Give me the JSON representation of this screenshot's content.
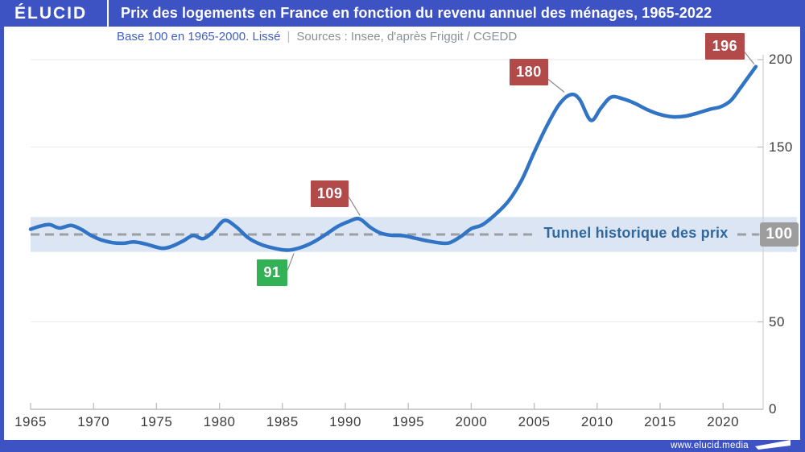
{
  "header": {
    "logo": "ÉLUCID",
    "title": "Prix des logements en France en fonction du revenu annuel des ménages, 1965-2022"
  },
  "subtitle": {
    "base": "Base 100 en 1965-2000. Lissé",
    "separator": "|",
    "sources": "Sources : Insee, d'après Friggit / CGEDD"
  },
  "footer": {
    "url": "www.elucid.media"
  },
  "colors": {
    "brand_blue": "#3e53c3",
    "line_blue": "#3174c6",
    "tunnel_band": "#dbe5f3",
    "tunnel_text": "#2f689e",
    "dashed_gray": "#9aa0a6",
    "badge_red": "#b34a4a",
    "badge_green": "#32b155",
    "badge_gray": "#9d9d9d",
    "grid_gray": "#ededed",
    "axis_gray": "#bdbdbd",
    "tick_text": "#3d3d3d",
    "connector_gray": "#8a8a8a"
  },
  "chart_data": {
    "type": "line",
    "title": "Prix des logements en France en fonction du revenu annuel des ménages, 1965-2022",
    "subtitle": "Base 100 en 1965-2000. Lissé",
    "sources": "Sources : Insee, d'après Friggit / CGEDD",
    "xlabel": "",
    "ylabel": "",
    "xlim": [
      1965,
      2023.2
    ],
    "ylim": [
      0,
      200
    ],
    "xticks": [
      1965,
      1970,
      1975,
      1980,
      1985,
      1990,
      1995,
      2000,
      2005,
      2010,
      2015,
      2020
    ],
    "yticks": [
      0,
      50,
      100,
      150,
      200
    ],
    "highlighted_ytick": 100,
    "grid_yticks": [
      50,
      150,
      200
    ],
    "baseline": {
      "value": 100,
      "style": "dashed"
    },
    "tunnel": {
      "min": 90,
      "max": 110,
      "label": "Tunnel historique des prix"
    },
    "series": [
      {
        "name": "Prix des logements rapporté au revenu annuel des ménages",
        "points": [
          [
            1965.0,
            103.0
          ],
          [
            1965.8,
            104.8
          ],
          [
            1966.5,
            105.6
          ],
          [
            1967.3,
            103.7
          ],
          [
            1968.2,
            105.2
          ],
          [
            1969.0,
            103.0
          ],
          [
            1969.8,
            99.5
          ],
          [
            1970.6,
            96.9
          ],
          [
            1971.5,
            95.3
          ],
          [
            1972.4,
            95.0
          ],
          [
            1973.2,
            95.7
          ],
          [
            1974.1,
            94.6
          ],
          [
            1975.4,
            92.1
          ],
          [
            1976.2,
            93.2
          ],
          [
            1977.1,
            96.2
          ],
          [
            1977.9,
            99.4
          ],
          [
            1978.7,
            97.6
          ],
          [
            1979.5,
            101.5
          ],
          [
            1980.4,
            108.0
          ],
          [
            1981.3,
            104.5
          ],
          [
            1982.3,
            98.0
          ],
          [
            1983.3,
            94.3
          ],
          [
            1984.3,
            92.2
          ],
          [
            1985.4,
            91.0
          ],
          [
            1986.4,
            92.4
          ],
          [
            1987.4,
            95.4
          ],
          [
            1988.4,
            99.8
          ],
          [
            1989.4,
            104.6
          ],
          [
            1990.3,
            107.5
          ],
          [
            1991.1,
            109.0
          ],
          [
            1992.0,
            104.0
          ],
          [
            1992.8,
            100.8
          ],
          [
            1993.6,
            99.6
          ],
          [
            1994.6,
            99.3
          ],
          [
            1995.6,
            97.8
          ],
          [
            1996.6,
            96.2
          ],
          [
            1997.6,
            95.1
          ],
          [
            1998.3,
            95.3
          ],
          [
            1999.2,
            99.0
          ],
          [
            2000.0,
            103.3
          ],
          [
            2000.9,
            105.6
          ],
          [
            2002.0,
            112.0
          ],
          [
            2003.0,
            119.5
          ],
          [
            2004.0,
            131.0
          ],
          [
            2005.0,
            147.0
          ],
          [
            2006.0,
            162.0
          ],
          [
            2007.0,
            174.5
          ],
          [
            2007.9,
            180.0
          ],
          [
            2008.6,
            177.3
          ],
          [
            2009.5,
            165.3
          ],
          [
            2010.3,
            172.3
          ],
          [
            2011.1,
            178.5
          ],
          [
            2012.0,
            177.7
          ],
          [
            2013.0,
            175.0
          ],
          [
            2014.0,
            171.3
          ],
          [
            2015.0,
            168.6
          ],
          [
            2016.0,
            167.3
          ],
          [
            2017.0,
            167.7
          ],
          [
            2018.0,
            169.5
          ],
          [
            2019.0,
            171.7
          ],
          [
            2019.8,
            173.0
          ],
          [
            2020.6,
            176.5
          ],
          [
            2021.3,
            183.0
          ],
          [
            2022.0,
            190.0
          ],
          [
            2022.6,
            196.0
          ]
        ]
      }
    ],
    "annotations": [
      {
        "year": 1985.4,
        "value": 91,
        "label": "91",
        "color": "#32b155",
        "placement": "below"
      },
      {
        "year": 1991.1,
        "value": 109,
        "label": "109",
        "color": "#b34a4a",
        "placement": "above"
      },
      {
        "year": 2007.9,
        "value": 180,
        "label": "180",
        "color": "#b34a4a",
        "placement": "above"
      },
      {
        "year": 2022.6,
        "value": 196,
        "label": "196",
        "color": "#b34a4a",
        "placement": "above"
      }
    ]
  }
}
